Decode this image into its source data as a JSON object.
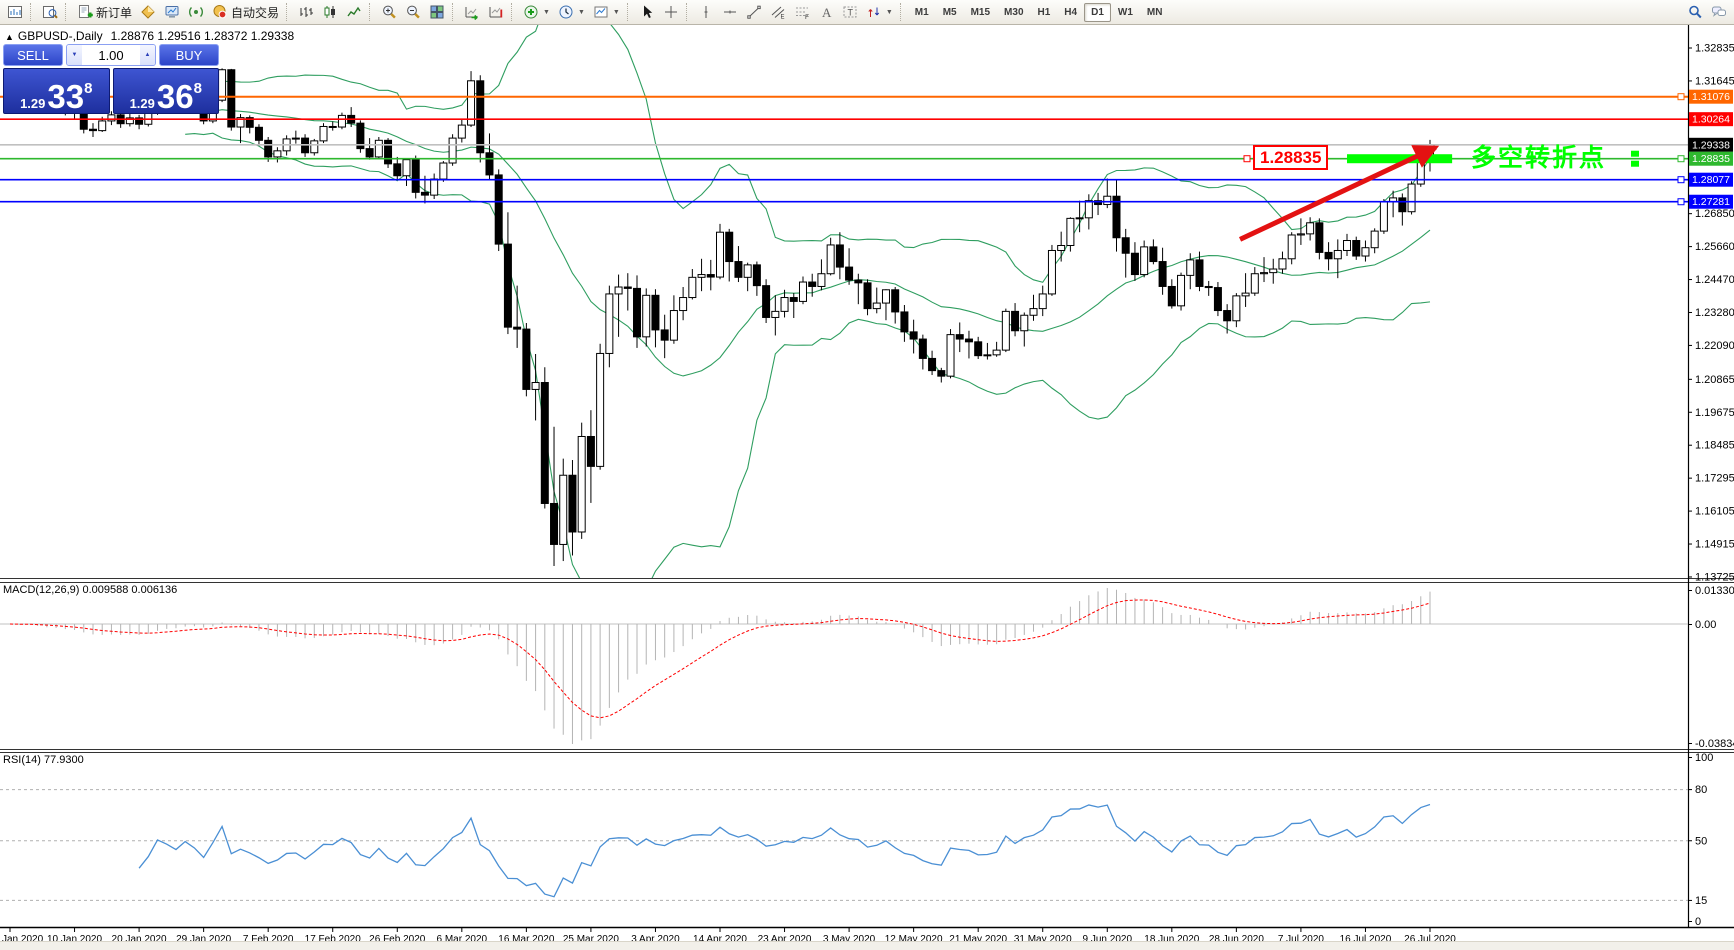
{
  "toolbar": {
    "items": [
      {
        "t": "btn",
        "icon": "chart-window"
      },
      {
        "t": "sep"
      },
      {
        "t": "btn",
        "icon": "data-window"
      },
      {
        "t": "sep"
      },
      {
        "t": "btn",
        "icon": "new-order",
        "label": "新订单"
      },
      {
        "t": "btn",
        "icon": "market-depth"
      },
      {
        "t": "btn",
        "icon": "terminal"
      },
      {
        "t": "btn",
        "icon": "signals"
      },
      {
        "t": "btn",
        "icon": "autotrade",
        "label": "自动交易"
      },
      {
        "t": "sep"
      },
      {
        "t": "btn",
        "icon": "bars-chart"
      },
      {
        "t": "btn",
        "icon": "candles-chart"
      },
      {
        "t": "btn",
        "icon": "line-chart"
      },
      {
        "t": "sep"
      },
      {
        "t": "btn",
        "icon": "zoom-in"
      },
      {
        "t": "btn",
        "icon": "zoom-out"
      },
      {
        "t": "btn",
        "icon": "tile-windows"
      },
      {
        "t": "sep"
      },
      {
        "t": "btn",
        "icon": "auto-scroll"
      },
      {
        "t": "btn",
        "icon": "chart-shift"
      },
      {
        "t": "sep"
      },
      {
        "t": "btn",
        "icon": "indicators",
        "caret": true
      },
      {
        "t": "btn",
        "icon": "periods",
        "caret": true
      },
      {
        "t": "btn",
        "icon": "templates",
        "caret": true
      },
      {
        "t": "sep"
      },
      {
        "t": "btn",
        "icon": "cursor"
      },
      {
        "t": "btn",
        "icon": "crosshair"
      },
      {
        "t": "sep"
      },
      {
        "t": "btn",
        "icon": "vertical-line"
      },
      {
        "t": "btn",
        "icon": "horizontal-line"
      },
      {
        "t": "btn",
        "icon": "trend-line"
      },
      {
        "t": "btn",
        "icon": "channel"
      },
      {
        "t": "btn",
        "icon": "fibonacci"
      },
      {
        "t": "btn",
        "icon": "text"
      },
      {
        "t": "btn",
        "icon": "text-label"
      },
      {
        "t": "btn",
        "icon": "arrows",
        "caret": true
      },
      {
        "t": "sep"
      },
      {
        "t": "tfs"
      },
      {
        "t": "spring"
      },
      {
        "t": "btn",
        "icon": "search"
      },
      {
        "t": "btn",
        "icon": "chat"
      }
    ],
    "timeframes": [
      "M1",
      "M5",
      "M15",
      "M30",
      "H1",
      "H4",
      "D1",
      "W1",
      "MN"
    ],
    "active_timeframe": "D1"
  },
  "header": {
    "collapse": "▲",
    "symbol": "GBPUSD-,Daily",
    "ohlc": "1.28876 1.29516 1.28372 1.29338"
  },
  "panel": {
    "sell_label": "SELL",
    "buy_label": "BUY",
    "volume": "1.00",
    "sell": {
      "prefix": "1.29",
      "big": "33",
      "sup": "8"
    },
    "buy": {
      "prefix": "1.29",
      "big": "36",
      "sup": "8"
    }
  },
  "indicator_labels": {
    "macd": "MACD(12,26,9) 0.009588 0.006136",
    "rsi": "RSI(14) 77.9300"
  },
  "annotations": {
    "price_tag": {
      "text": "1.28835",
      "color": "#ff0000"
    },
    "note": {
      "text": "多空转折点",
      "color": "#00ff00"
    },
    "zone": {
      "from_bar": 145,
      "to_bar": 156.4,
      "price": 1.28835,
      "color": "#00ff00"
    },
    "arrow": {
      "from_bar": 133.4,
      "from_price": 1.2592,
      "to_bar": 154.6,
      "to_price": 1.2924,
      "color": "#e31212"
    }
  },
  "chart_data": {
    "type": "candlestick",
    "symbol": "GBPUSD",
    "timeframe": "Daily",
    "ylim": [
      1.13689,
      1.33666
    ],
    "price_ticks": [
      "1.32835",
      "1.31645",
      "1.26850",
      "1.25660",
      "1.24470",
      "1.23280",
      "1.22090",
      "1.20865",
      "1.19675",
      "1.18485",
      "1.17295",
      "1.16105",
      "1.14915",
      "1.13725"
    ],
    "x_labels": [
      "Jan 2020",
      "10 Jan 2020",
      "20 Jan 2020",
      "29 Jan 2020",
      "7 Feb 2020",
      "17 Feb 2020",
      "26 Feb 2020",
      "6 Mar 2020",
      "16 Mar 2020",
      "25 Mar 2020",
      "3 Apr 2020",
      "14 Apr 2020",
      "23 Apr 2020",
      "3 May 2020",
      "12 May 2020",
      "21 May 2020",
      "31 May 2020",
      "9 Jun 2020",
      "18 Jun 2020",
      "28 Jun 2020",
      "7 Jul 2020",
      "16 Jul 2020",
      "26 Jul 2020"
    ],
    "price_lines": [
      {
        "price": 1.31076,
        "label": "1.31076",
        "color": "#ff6600",
        "badge": "#ff6600",
        "handle": true
      },
      {
        "price": 1.30264,
        "label": "1.30264",
        "color": "#ff0000",
        "badge": "#ff0000",
        "handle": false
      },
      {
        "price": 1.29338,
        "label": "1.29338",
        "color": "#c0c0c0",
        "badge": "#000000",
        "handle": false
      },
      {
        "price": 1.28835,
        "label": "1.28835",
        "color": "#2eb82e",
        "badge": "#2eb82e",
        "handle": true
      },
      {
        "price": 1.28077,
        "label": "1.28077",
        "color": "#0000ff",
        "badge": "#0000ff",
        "handle": true
      },
      {
        "price": 1.27281,
        "label": "1.27281",
        "color": "#0000ff",
        "badge": "#0000ff",
        "handle": true
      }
    ],
    "indicators": {
      "bollinger": {
        "period": 20,
        "deviation": 2,
        "color": "#2f9e60"
      },
      "macd": {
        "fast": 12,
        "slow": 26,
        "signal": 9,
        "axis": [
          "0.013301",
          "0.00",
          "-0.038343"
        ],
        "hist_color": "#b4b4b4",
        "signal_color": "#ff0000"
      },
      "rsi": {
        "period": 14,
        "value": 77.93,
        "color": "#4a8fd4",
        "levels": [
          80,
          50,
          15
        ],
        "axis_labels": [
          "100",
          "80",
          "50",
          "15",
          "0"
        ],
        "axis_values": [
          100,
          80,
          50,
          15,
          0
        ]
      }
    },
    "candles": [
      [
        1.315,
        1.3165,
        1.3105,
        1.3135
      ],
      [
        1.3135,
        1.315,
        1.3085,
        1.31
      ],
      [
        1.31,
        1.316,
        1.309,
        1.3143
      ],
      [
        1.3143,
        1.3155,
        1.307,
        1.3085
      ],
      [
        1.3085,
        1.31,
        1.3045,
        1.3066
      ],
      [
        1.3066,
        1.3095,
        1.305,
        1.3079
      ],
      [
        1.3079,
        1.3092,
        1.304,
        1.306
      ],
      [
        1.306,
        1.3075,
        1.3025,
        1.3058
      ],
      [
        1.3058,
        1.3065,
        1.2975,
        1.299
      ],
      [
        1.299,
        1.3012,
        1.2962,
        1.2985
      ],
      [
        1.2985,
        1.3035,
        1.298,
        1.302
      ],
      [
        1.302,
        1.3055,
        1.3005,
        1.3042
      ],
      [
        1.3042,
        1.3052,
        1.2995,
        1.301
      ],
      [
        1.301,
        1.3048,
        1.3,
        1.3031
      ],
      [
        1.3031,
        1.3042,
        1.299,
        1.3008
      ],
      [
        1.3008,
        1.3062,
        1.3,
        1.305
      ],
      [
        1.305,
        1.314,
        1.3042,
        1.3125
      ],
      [
        1.3125,
        1.3138,
        1.308,
        1.3103
      ],
      [
        1.3103,
        1.3118,
        1.3058,
        1.3074
      ],
      [
        1.3074,
        1.3125,
        1.3065,
        1.3112
      ],
      [
        1.3112,
        1.3122,
        1.3062,
        1.3078
      ],
      [
        1.3078,
        1.3088,
        1.3008,
        1.302
      ],
      [
        1.302,
        1.311,
        1.3012,
        1.3095
      ],
      [
        1.3095,
        1.321,
        1.3088,
        1.3205
      ],
      [
        1.3205,
        1.3208,
        1.2985,
        1.2998
      ],
      [
        1.2998,
        1.3045,
        1.294,
        1.3032
      ],
      [
        1.3032,
        1.304,
        1.2975,
        1.2997
      ],
      [
        1.2997,
        1.3008,
        1.293,
        1.295
      ],
      [
        1.295,
        1.2962,
        1.2872,
        1.289
      ],
      [
        1.289,
        1.2925,
        1.287,
        1.2912
      ],
      [
        1.2912,
        1.2968,
        1.2895,
        1.2955
      ],
      [
        1.2955,
        1.2985,
        1.2938,
        1.2958
      ],
      [
        1.2958,
        1.2972,
        1.289,
        1.2905
      ],
      [
        1.2905,
        1.2955,
        1.2895,
        1.2948
      ],
      [
        1.2948,
        1.3012,
        1.294,
        1.3
      ],
      [
        1.3,
        1.3018,
        1.2985,
        1.2998
      ],
      [
        1.2998,
        1.305,
        1.299,
        1.304
      ],
      [
        1.304,
        1.307,
        1.2998,
        1.3012
      ],
      [
        1.3012,
        1.3022,
        1.2905,
        1.292
      ],
      [
        1.292,
        1.2958,
        1.288,
        1.289
      ],
      [
        1.289,
        1.2962,
        1.2885,
        1.295
      ],
      [
        1.295,
        1.2958,
        1.285,
        1.2865
      ],
      [
        1.2865,
        1.289,
        1.281,
        1.2822
      ],
      [
        1.2822,
        1.2885,
        1.2785,
        1.288
      ],
      [
        1.288,
        1.2895,
        1.274,
        1.2762
      ],
      [
        1.2762,
        1.2822,
        1.2722,
        1.2752
      ],
      [
        1.2752,
        1.283,
        1.2738,
        1.281
      ],
      [
        1.281,
        1.2875,
        1.28,
        1.2868
      ],
      [
        1.2868,
        1.2972,
        1.2858,
        1.2958
      ],
      [
        1.2958,
        1.3025,
        1.2942,
        1.3005
      ],
      [
        1.3005,
        1.32,
        1.2998,
        1.3165
      ],
      [
        1.3165,
        1.3185,
        1.287,
        1.2905
      ],
      [
        1.2905,
        1.2975,
        1.281,
        1.2825
      ],
      [
        1.2825,
        1.2845,
        1.255,
        1.2575
      ],
      [
        1.2575,
        1.269,
        1.225,
        1.2275
      ],
      [
        1.2275,
        1.2425,
        1.22,
        1.2268
      ],
      [
        1.2268,
        1.229,
        1.2025,
        1.205
      ],
      [
        1.205,
        1.2178,
        1.1938,
        1.2075
      ],
      [
        1.2075,
        1.213,
        1.162,
        1.1638
      ],
      [
        1.1638,
        1.1915,
        1.1412,
        1.149
      ],
      [
        1.149,
        1.18,
        1.143,
        1.174
      ],
      [
        1.174,
        1.1795,
        1.145,
        1.1535
      ],
      [
        1.1535,
        1.193,
        1.151,
        1.188
      ],
      [
        1.188,
        1.1975,
        1.164,
        1.1772
      ],
      [
        1.1772,
        1.2215,
        1.176,
        1.218
      ],
      [
        1.218,
        1.2425,
        1.213,
        1.2395
      ],
      [
        1.2395,
        1.2465,
        1.224,
        1.242
      ],
      [
        1.242,
        1.247,
        1.2335,
        1.2415
      ],
      [
        1.2415,
        1.2462,
        1.22,
        1.224
      ],
      [
        1.224,
        1.2415,
        1.2205,
        1.239
      ],
      [
        1.239,
        1.2412,
        1.2202,
        1.2265
      ],
      [
        1.2265,
        1.232,
        1.2163,
        1.2228
      ],
      [
        1.2228,
        1.239,
        1.2215,
        1.2335
      ],
      [
        1.2335,
        1.242,
        1.23,
        1.2382
      ],
      [
        1.2382,
        1.2485,
        1.2375,
        1.2455
      ],
      [
        1.2455,
        1.2522,
        1.2405,
        1.2465
      ],
      [
        1.2465,
        1.2518,
        1.2408,
        1.2456
      ],
      [
        1.2456,
        1.2648,
        1.2448,
        1.2618
      ],
      [
        1.2618,
        1.263,
        1.244,
        1.2512
      ],
      [
        1.2512,
        1.2568,
        1.2438,
        1.2455
      ],
      [
        1.2455,
        1.2508,
        1.2405,
        1.25
      ],
      [
        1.25,
        1.2512,
        1.2388,
        1.2425
      ],
      [
        1.2425,
        1.2448,
        1.229,
        1.231
      ],
      [
        1.231,
        1.239,
        1.2245,
        1.2332
      ],
      [
        1.2332,
        1.241,
        1.231,
        1.2382
      ],
      [
        1.2382,
        1.2398,
        1.2308,
        1.2368
      ],
      [
        1.2368,
        1.2458,
        1.2358,
        1.2438
      ],
      [
        1.2438,
        1.2468,
        1.2385,
        1.2422
      ],
      [
        1.2422,
        1.252,
        1.2408,
        1.2468
      ],
      [
        1.2468,
        1.2598,
        1.2462,
        1.2572
      ],
      [
        1.2572,
        1.2618,
        1.2448,
        1.2492
      ],
      [
        1.2492,
        1.256,
        1.2428,
        1.2445
      ],
      [
        1.2445,
        1.2468,
        1.2358,
        1.2435
      ],
      [
        1.2435,
        1.2448,
        1.2318,
        1.2342
      ],
      [
        1.2342,
        1.2418,
        1.2325,
        1.2362
      ],
      [
        1.2362,
        1.2412,
        1.23,
        1.241
      ],
      [
        1.241,
        1.242,
        1.2288,
        1.233
      ],
      [
        1.233,
        1.2355,
        1.2222,
        1.2258
      ],
      [
        1.2258,
        1.2302,
        1.218,
        1.2232
      ],
      [
        1.2232,
        1.2248,
        1.2122,
        1.2162
      ],
      [
        1.2162,
        1.219,
        1.2102,
        1.2118
      ],
      [
        1.2118,
        1.2128,
        1.2075,
        1.2098
      ],
      [
        1.2098,
        1.2268,
        1.209,
        1.2248
      ],
      [
        1.2248,
        1.2292,
        1.2185,
        1.2232
      ],
      [
        1.2232,
        1.2262,
        1.2162,
        1.2222
      ],
      [
        1.2222,
        1.224,
        1.216,
        1.2172
      ],
      [
        1.2172,
        1.2218,
        1.2158,
        1.2175
      ],
      [
        1.2175,
        1.2222,
        1.2168,
        1.2192
      ],
      [
        1.2192,
        1.2342,
        1.2185,
        1.2332
      ],
      [
        1.2332,
        1.2362,
        1.2242,
        1.2262
      ],
      [
        1.2262,
        1.2328,
        1.2205,
        1.2318
      ],
      [
        1.2318,
        1.2392,
        1.2298,
        1.2342
      ],
      [
        1.2342,
        1.2425,
        1.2315,
        1.2395
      ],
      [
        1.2395,
        1.2572,
        1.2388,
        1.2552
      ],
      [
        1.2552,
        1.262,
        1.2512,
        1.257
      ],
      [
        1.257,
        1.2672,
        1.2548,
        1.2668
      ],
      [
        1.2668,
        1.2732,
        1.2618,
        1.267
      ],
      [
        1.267,
        1.2755,
        1.2628,
        1.2732
      ],
      [
        1.2732,
        1.276,
        1.268,
        1.2718
      ],
      [
        1.2718,
        1.2812,
        1.2705,
        1.2748
      ],
      [
        1.2748,
        1.2808,
        1.2548,
        1.2598
      ],
      [
        1.2598,
        1.263,
        1.2454,
        1.2542
      ],
      [
        1.2542,
        1.2582,
        1.2442,
        1.2465
      ],
      [
        1.2465,
        1.2588,
        1.2455,
        1.2565
      ],
      [
        1.2565,
        1.2592,
        1.2502,
        1.2512
      ],
      [
        1.2512,
        1.2562,
        1.2392,
        1.2422
      ],
      [
        1.2422,
        1.2448,
        1.2342,
        1.2352
      ],
      [
        1.2352,
        1.2472,
        1.2335,
        1.2462
      ],
      [
        1.2462,
        1.2542,
        1.2412,
        1.2518
      ],
      [
        1.2518,
        1.2548,
        1.2405,
        1.2422
      ],
      [
        1.2422,
        1.2442,
        1.2388,
        1.2418
      ],
      [
        1.2418,
        1.2438,
        1.2315,
        1.2335
      ],
      [
        1.2335,
        1.2358,
        1.2252,
        1.2298
      ],
      [
        1.2298,
        1.2398,
        1.2275,
        1.2388
      ],
      [
        1.2388,
        1.247,
        1.2348,
        1.2398
      ],
      [
        1.2398,
        1.2492,
        1.2388,
        1.2468
      ],
      [
        1.2468,
        1.2528,
        1.2438,
        1.2472
      ],
      [
        1.2472,
        1.2522,
        1.2432,
        1.2485
      ],
      [
        1.2485,
        1.2548,
        1.2468,
        1.2522
      ],
      [
        1.2522,
        1.2618,
        1.2502,
        1.2608
      ],
      [
        1.2608,
        1.2668,
        1.2572,
        1.2612
      ],
      [
        1.2612,
        1.2672,
        1.2588,
        1.2652
      ],
      [
        1.2652,
        1.2668,
        1.252,
        1.2545
      ],
      [
        1.2545,
        1.2582,
        1.248,
        1.2522
      ],
      [
        1.2522,
        1.2592,
        1.2452,
        1.2552
      ],
      [
        1.2552,
        1.2612,
        1.2532,
        1.2588
      ],
      [
        1.2588,
        1.2602,
        1.2518,
        1.2532
      ],
      [
        1.2532,
        1.2588,
        1.2512,
        1.2562
      ],
      [
        1.2562,
        1.2632,
        1.2542,
        1.2622
      ],
      [
        1.2622,
        1.2738,
        1.2612,
        1.2728
      ],
      [
        1.2728,
        1.2768,
        1.2672,
        1.2742
      ],
      [
        1.2742,
        1.2758,
        1.2642,
        1.2692
      ],
      [
        1.2692,
        1.2802,
        1.2682,
        1.2792
      ],
      [
        1.2792,
        1.2895,
        1.2782,
        1.2888
      ],
      [
        1.28876,
        1.29516,
        1.28372,
        1.29338
      ]
    ]
  }
}
